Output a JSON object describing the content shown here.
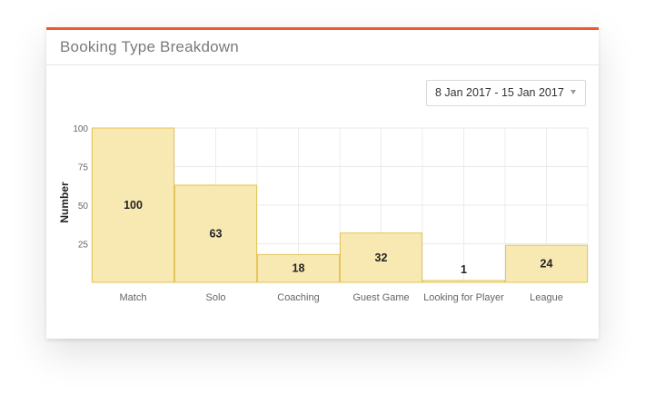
{
  "card": {
    "title": "Booking Type Breakdown"
  },
  "date_filter": {
    "value": "8 Jan 2017 - 15 Jan 2017",
    "caret_icon": "chevron-down-icon"
  },
  "colors": {
    "accent": "#ee5a2f",
    "bar_fill": "#f8e8b2",
    "bar_stroke": "#e3c65a"
  },
  "chart_data": {
    "type": "bar",
    "title": "",
    "xlabel": "",
    "ylabel": "Number",
    "categories": [
      "Match",
      "Solo",
      "Coaching",
      "Guest Game",
      "Looking for Player",
      "League"
    ],
    "values": [
      100,
      63,
      18,
      32,
      1,
      24
    ],
    "ylim": [
      0,
      100
    ],
    "yticks": [
      25,
      50,
      75,
      100
    ],
    "grid": true,
    "legend": "none"
  }
}
